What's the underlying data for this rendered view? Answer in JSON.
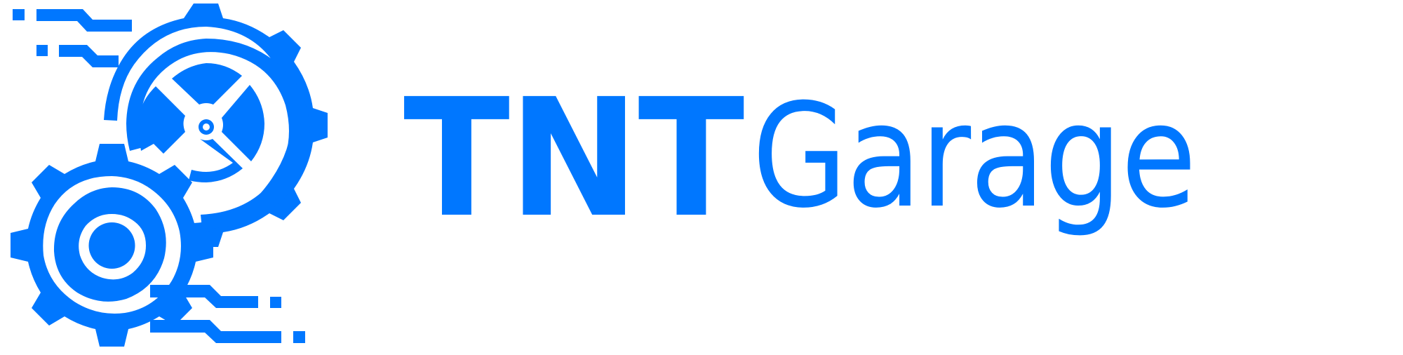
{
  "brand": {
    "name_bold": "TNT",
    "name_regular": "Garage",
    "color": "#0077ff"
  },
  "mark": {
    "icon": "gears-circuit-icon"
  }
}
